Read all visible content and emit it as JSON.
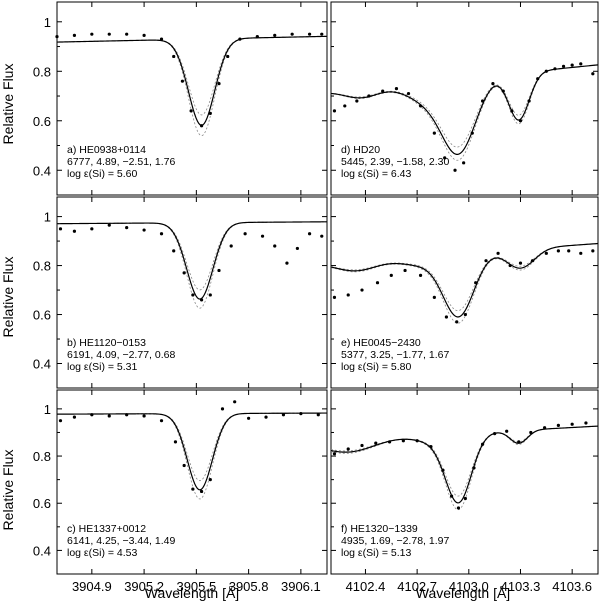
{
  "ylabel": "Relative Flux",
  "xlabel": "Wavelength [Å]",
  "columns": [
    {
      "xlim": [
        3904.7,
        3906.25
      ],
      "xticks": [
        {
          "v": 3904.9,
          "label": "3904.9"
        },
        {
          "v": 3905.2,
          "label": "3905.2"
        },
        {
          "v": 3905.5,
          "label": "3905.5"
        },
        {
          "v": 3905.8,
          "label": "3905.8"
        },
        {
          "v": 3906.1,
          "label": "3906.1"
        }
      ]
    },
    {
      "xlim": [
        4102.2,
        4103.75
      ],
      "xticks": [
        {
          "v": 4102.4,
          "label": "4102.4"
        },
        {
          "v": 4102.7,
          "label": "4102.7"
        },
        {
          "v": 4103.0,
          "label": "4103.0"
        },
        {
          "v": 4103.3,
          "label": "4103.3"
        },
        {
          "v": 4103.6,
          "label": "4103.6"
        }
      ]
    }
  ],
  "ylim": [
    0.3,
    1.08
  ],
  "yticks": [
    {
      "v": 0.4,
      "label": "0.4"
    },
    {
      "v": 0.6,
      "label": "0.6"
    },
    {
      "v": 0.8,
      "label": "0.8"
    },
    {
      "v": 1.0,
      "label": "1"
    }
  ],
  "chart_data": [
    {
      "type": "line",
      "panel": "a",
      "col": 0,
      "row": 0,
      "label": {
        "line1": "a) HE0938+0114",
        "line2": "6777, 4.89, −2.51, 1.76",
        "line3": "log ε(Si) = 5.60"
      },
      "model": {
        "continuum": {
          "a": 0.93,
          "b": 0.015,
          "mid": 3905.5
        },
        "lines": [
          {
            "c": 3905.53,
            "d": 0.375,
            "s": 0.075
          }
        ],
        "alt_depth_scale": [
          0.88,
          1.12
        ]
      },
      "observed": {
        "x": [
          3904.7,
          3904.8,
          3904.9,
          3905.0,
          3905.1,
          3905.2,
          3905.3,
          3905.37,
          3905.42,
          3905.47,
          3905.53,
          3905.58,
          3905.63,
          3905.68,
          3905.75,
          3905.85,
          3905.95,
          3906.05,
          3906.15,
          3906.22
        ],
        "y": [
          0.94,
          0.945,
          0.95,
          0.95,
          0.95,
          0.945,
          0.93,
          0.86,
          0.76,
          0.64,
          0.58,
          0.63,
          0.75,
          0.86,
          0.93,
          0.94,
          0.945,
          0.95,
          0.95,
          0.95
        ]
      }
    },
    {
      "type": "line",
      "panel": "b",
      "col": 0,
      "row": 1,
      "label": {
        "line1": "b) HE1120−0153",
        "line2": "6191, 4.09, −2.77, 0.68",
        "line3": "log ε(Si) = 5.31"
      },
      "model": {
        "continuum": {
          "a": 0.975,
          "b": 0.005,
          "mid": 3905.5
        },
        "lines": [
          {
            "c": 3905.52,
            "d": 0.32,
            "s": 0.075
          }
        ],
        "alt_depth_scale": [
          0.88,
          1.12
        ]
      },
      "observed": {
        "x": [
          3904.72,
          3904.8,
          3904.9,
          3905.0,
          3905.1,
          3905.2,
          3905.3,
          3905.37,
          3905.43,
          3905.48,
          3905.53,
          3905.58,
          3905.63,
          3905.7,
          3905.78,
          3905.88,
          3905.95,
          3906.02,
          3906.08,
          3906.15,
          3906.22
        ],
        "y": [
          0.95,
          0.94,
          0.95,
          0.965,
          0.955,
          0.945,
          0.93,
          0.86,
          0.77,
          0.68,
          0.66,
          0.68,
          0.78,
          0.88,
          0.93,
          0.92,
          0.88,
          0.81,
          0.87,
          0.93,
          0.92
        ]
      }
    },
    {
      "type": "line",
      "panel": "c",
      "col": 0,
      "row": 2,
      "label": {
        "line1": "c) HE1337+0012",
        "line2": "6141, 4.25, −3.44, 1.49",
        "line3": "log ε(Si) = 4.53"
      },
      "model": {
        "continuum": {
          "a": 0.98,
          "b": 0.003,
          "mid": 3905.5
        },
        "lines": [
          {
            "c": 3905.52,
            "d": 0.33,
            "s": 0.072
          }
        ],
        "alt_depth_scale": [
          0.88,
          1.12
        ]
      },
      "observed": {
        "x": [
          3904.72,
          3904.8,
          3904.9,
          3905.0,
          3905.1,
          3905.2,
          3905.3,
          3905.38,
          3905.43,
          3905.48,
          3905.53,
          3905.58,
          3905.65,
          3905.72,
          3905.8,
          3905.9,
          3906.0,
          3906.1,
          3906.2
        ],
        "y": [
          0.95,
          0.965,
          0.975,
          0.97,
          0.975,
          0.97,
          0.95,
          0.86,
          0.76,
          0.66,
          0.65,
          0.7,
          1.0,
          1.03,
          0.96,
          0.965,
          0.975,
          0.98,
          0.975
        ]
      }
    },
    {
      "type": "line",
      "panel": "d",
      "col": 1,
      "row": 0,
      "label": {
        "line1": "d) HD20",
        "line2": "5445, 2.39, −1.58, 2.30",
        "line3": "log ε(Si) = 6.43"
      },
      "model": {
        "continuum": {
          "a": 0.77,
          "b": 0.07,
          "mid": 4102.95
        },
        "lines": [
          {
            "c": 4102.94,
            "d": 0.38,
            "s": 0.1
          },
          {
            "c": 4102.75,
            "d": 0.09,
            "s": 0.12
          },
          {
            "c": 4103.29,
            "d": 0.24,
            "s": 0.06
          },
          {
            "c": 4102.38,
            "d": 0.05,
            "s": 0.1
          }
        ],
        "alt_depth_scale": [
          0.9,
          1.08
        ]
      },
      "observed": {
        "x": [
          4102.22,
          4102.28,
          4102.35,
          4102.42,
          4102.5,
          4102.58,
          4102.65,
          4102.72,
          4102.8,
          4102.86,
          4102.92,
          4102.97,
          4103.02,
          4103.08,
          4103.14,
          4103.2,
          4103.25,
          4103.3,
          4103.35,
          4103.4,
          4103.45,
          4103.5,
          4103.55,
          4103.6,
          4103.65,
          4103.72
        ],
        "y": [
          0.64,
          0.66,
          0.68,
          0.7,
          0.72,
          0.73,
          0.71,
          0.66,
          0.55,
          0.45,
          0.4,
          0.43,
          0.55,
          0.68,
          0.75,
          0.72,
          0.64,
          0.6,
          0.68,
          0.77,
          0.8,
          0.81,
          0.82,
          0.825,
          0.83,
          0.79
        ]
      }
    },
    {
      "type": "line",
      "panel": "e",
      "col": 1,
      "row": 1,
      "label": {
        "line1": "e) HE0045−2430",
        "line2": "5377, 3.25, −1.77, 1.67",
        "line3": "log ε(Si) = 5.80"
      },
      "model": {
        "continuum": {
          "a": 0.85,
          "b": 0.05,
          "mid": 4102.95
        },
        "lines": [
          {
            "c": 4102.94,
            "d": 0.3,
            "s": 0.09
          },
          {
            "c": 4102.72,
            "d": 0.04,
            "s": 0.12
          },
          {
            "c": 4103.3,
            "d": 0.09,
            "s": 0.08
          },
          {
            "c": 4102.35,
            "d": 0.05,
            "s": 0.12
          }
        ],
        "alt_depth_scale": [
          0.9,
          1.1
        ]
      },
      "observed": {
        "x": [
          4102.22,
          4102.3,
          4102.38,
          4102.47,
          4102.55,
          4102.63,
          4102.72,
          4102.8,
          4102.87,
          4102.93,
          4102.98,
          4103.04,
          4103.1,
          4103.17,
          4103.24,
          4103.3,
          4103.37,
          4103.45,
          4103.52,
          4103.58,
          4103.65,
          4103.72
        ],
        "y": [
          0.67,
          0.68,
          0.7,
          0.73,
          0.76,
          0.78,
          0.76,
          0.67,
          0.59,
          0.57,
          0.6,
          0.73,
          0.82,
          0.85,
          0.8,
          0.81,
          0.82,
          0.85,
          0.86,
          0.86,
          0.85,
          0.86
        ]
      }
    },
    {
      "type": "line",
      "panel": "f",
      "col": 1,
      "row": 2,
      "label": {
        "line1": "f) HE1320−1339",
        "line2": "4935, 1.69, −2.78, 1.97",
        "line3": "log ε(Si) = 5.13"
      },
      "model": {
        "continuum": {
          "a": 0.895,
          "b": 0.04,
          "mid": 4102.95
        },
        "lines": [
          {
            "c": 4102.94,
            "d": 0.32,
            "s": 0.075
          },
          {
            "c": 4102.8,
            "d": 0.03,
            "s": 0.1
          },
          {
            "c": 4103.29,
            "d": 0.06,
            "s": 0.05
          },
          {
            "c": 4102.3,
            "d": 0.06,
            "s": 0.15
          }
        ],
        "alt_depth_scale": [
          0.9,
          1.1
        ]
      },
      "observed": {
        "x": [
          4102.22,
          4102.3,
          4102.38,
          4102.46,
          4102.54,
          4102.62,
          4102.7,
          4102.78,
          4102.85,
          4102.9,
          4102.94,
          4102.98,
          4103.03,
          4103.08,
          4103.15,
          4103.22,
          4103.29,
          4103.36,
          4103.44,
          4103.52,
          4103.6,
          4103.68
        ],
        "y": [
          0.81,
          0.83,
          0.845,
          0.855,
          0.86,
          0.865,
          0.865,
          0.84,
          0.74,
          0.63,
          0.58,
          0.62,
          0.75,
          0.85,
          0.895,
          0.905,
          0.86,
          0.9,
          0.92,
          0.93,
          0.935,
          0.94
        ]
      }
    }
  ]
}
